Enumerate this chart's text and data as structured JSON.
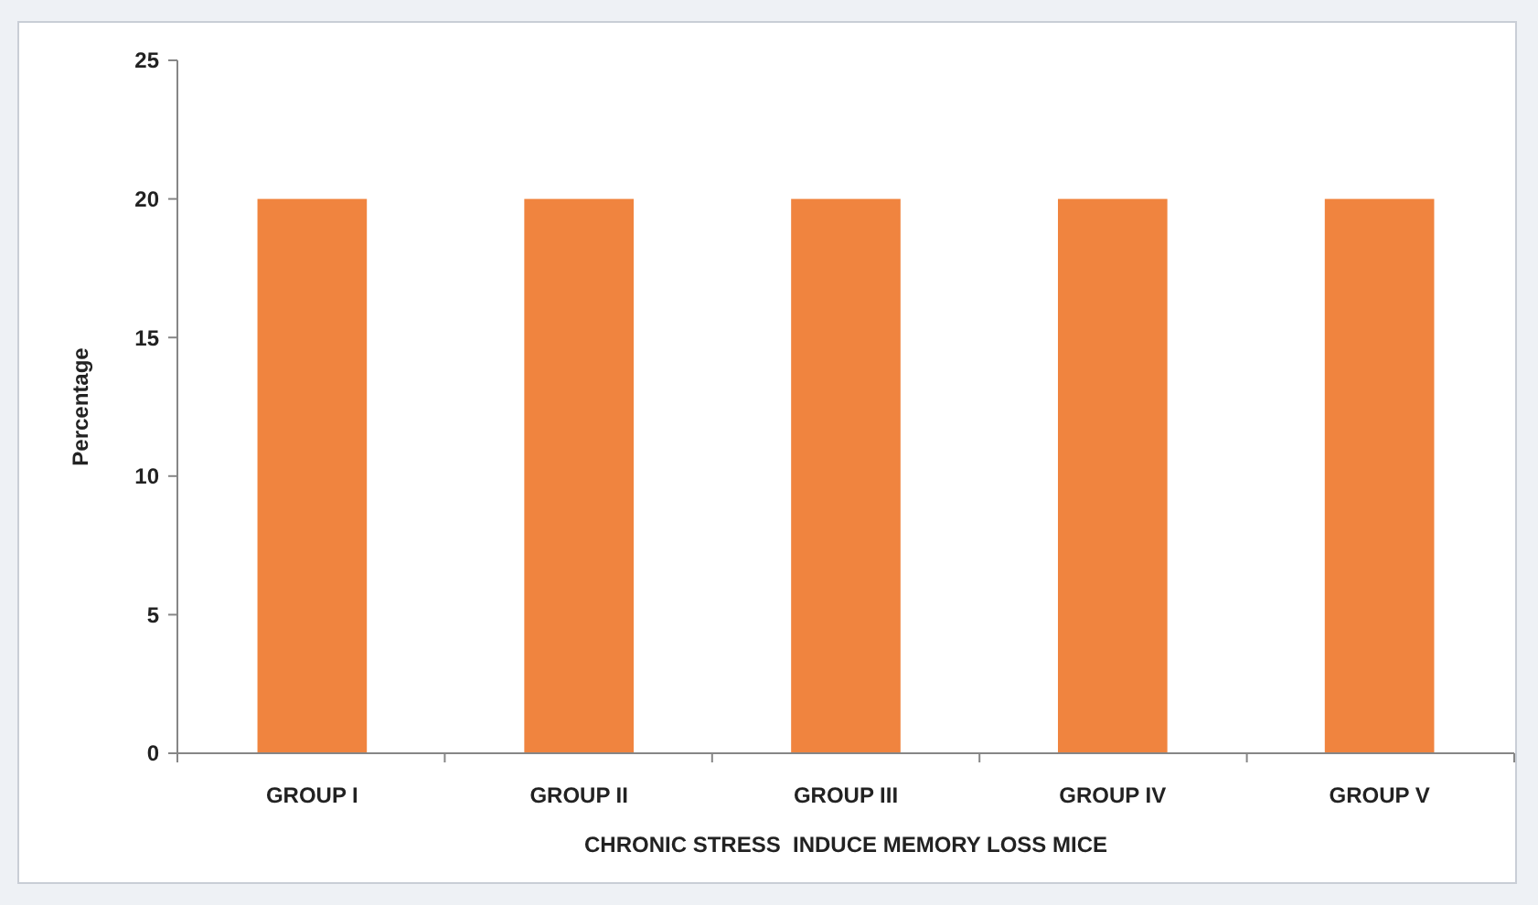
{
  "chart_data": {
    "type": "bar",
    "xlabel": "CHRONIC STRESS  INDUCE MEMORY LOSS MICE",
    "ylabel": "Percentage",
    "categories": [
      "GROUP I",
      "GROUP II",
      "GROUP III",
      "GROUP IV",
      "GROUP V"
    ],
    "values": [
      20,
      20,
      20,
      20,
      20
    ],
    "color": "#f0843f",
    "ylim": [
      0,
      25
    ],
    "yticks": [
      0,
      5,
      10,
      15,
      20,
      25
    ]
  }
}
